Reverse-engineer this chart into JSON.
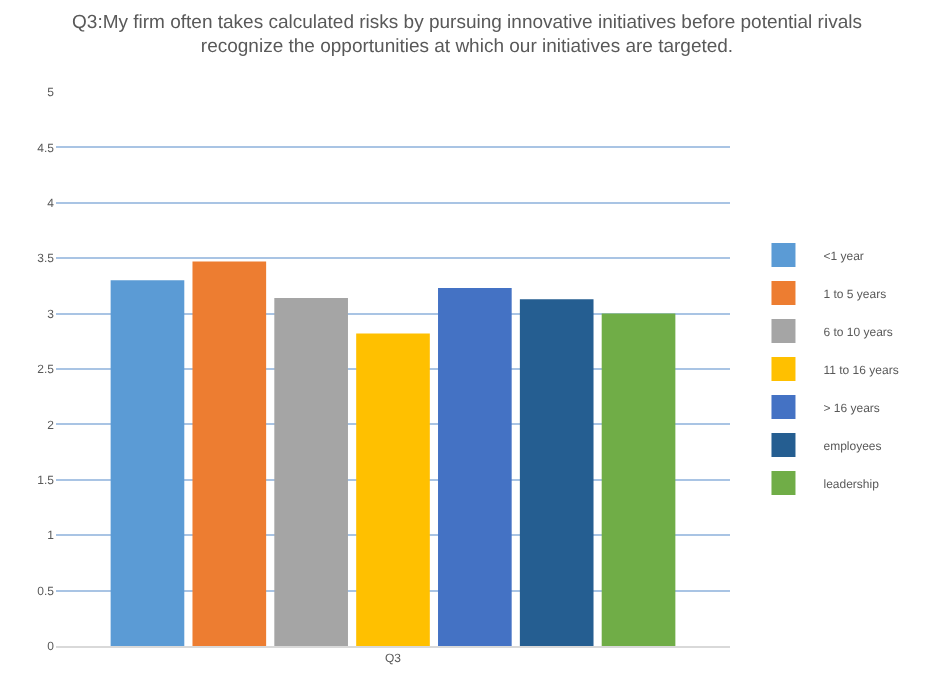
{
  "chart_data": {
    "type": "bar",
    "title": "Q3:My firm often takes calculated risks by pursuing innovative initiatives before potential rivals\nrecognize the opportunities at which our initiatives are targeted.",
    "categories": [
      "Q3"
    ],
    "series": [
      {
        "name": "<1 year",
        "color": "#5b9bd5",
        "values": [
          3.3
        ]
      },
      {
        "name": "1 to 5 years",
        "color": "#ed7d31",
        "values": [
          3.47
        ]
      },
      {
        "name": "6 to 10 years",
        "color": "#a5a5a5",
        "values": [
          3.14
        ]
      },
      {
        "name": "11 to 16 years",
        "color": "#ffc000",
        "values": [
          2.82
        ]
      },
      {
        "name": "> 16 years",
        "color": "#4472c4",
        "values": [
          3.23
        ]
      },
      {
        "name": "employees",
        "color": "#255e91",
        "values": [
          3.13
        ]
      },
      {
        "name": "leadership",
        "color": "#70ad47",
        "values": [
          3.0
        ]
      }
    ],
    "ylim": [
      0,
      5
    ],
    "yticks": [
      0,
      0.5,
      1,
      1.5,
      2,
      2.5,
      3,
      3.5,
      4,
      4.5,
      5
    ],
    "grid": "y",
    "legend": "right"
  }
}
